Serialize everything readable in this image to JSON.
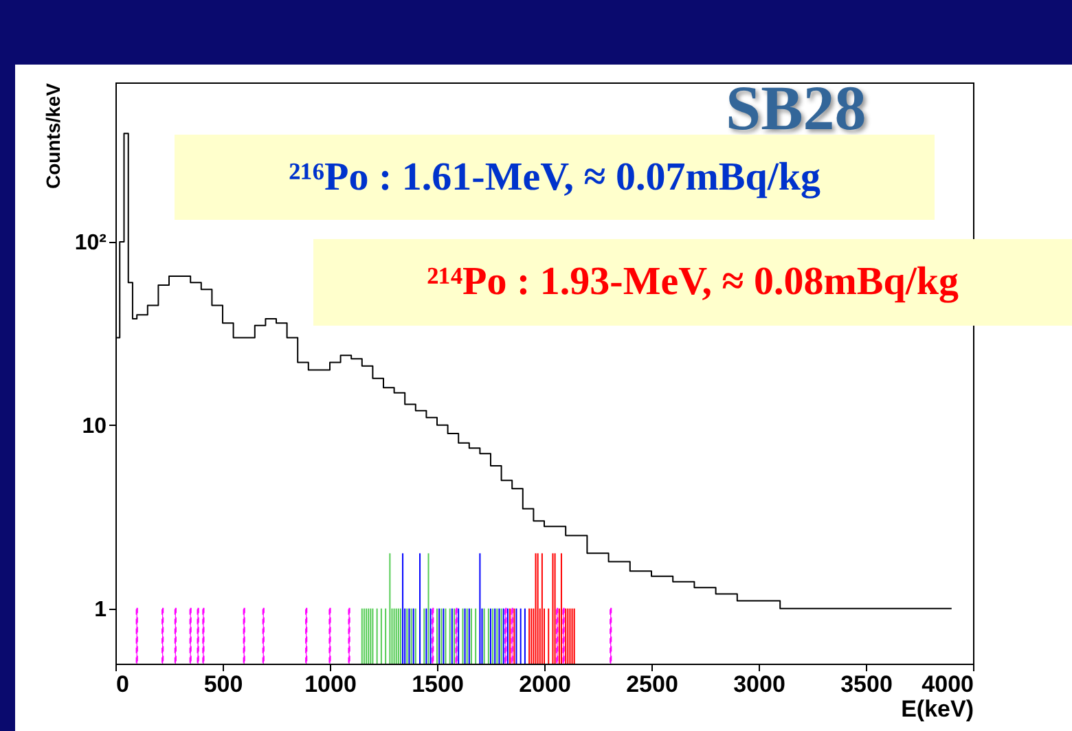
{
  "chart_data": {
    "type": "step",
    "xlabel": "E(keV)",
    "ylabel": "Counts/keV",
    "log": "y",
    "xlim": [
      0,
      4000
    ],
    "xticks": [
      0,
      500,
      1000,
      1500,
      2000,
      2500,
      3000,
      3500,
      4000
    ],
    "ylim": [
      0.5,
      740
    ],
    "yticks": [
      1,
      10,
      {
        "value": 100,
        "label": "10²"
      }
    ],
    "grid": false,
    "annotations": [
      "SB28",
      "²¹⁶Po : 1.61-MeV, ≈ 0.07mBq/kg",
      "²¹⁴Po : 1.93-MeV, ≈ 0.08mBq/kg"
    ],
    "series": [
      {
        "color": "#000000",
        "x": [
          0,
          20,
          40,
          60,
          80,
          100,
          150,
          200,
          250,
          300,
          350,
          400,
          450,
          500,
          550,
          600,
          650,
          700,
          750,
          800,
          850,
          900,
          950,
          1000,
          1050,
          1100,
          1150,
          1200,
          1250,
          1300,
          1350,
          1400,
          1450,
          1500,
          1550,
          1600,
          1650,
          1700,
          1750,
          1800,
          1850,
          1900,
          1950,
          2000,
          2100,
          2200,
          2300,
          2400,
          2500,
          2600,
          2700,
          2800,
          2900,
          3000,
          3100,
          3200,
          3300,
          3400,
          3500,
          3600,
          3700,
          3800,
          3900
        ],
        "values": [
          30,
          100,
          390,
          60,
          38,
          40,
          45,
          58,
          65,
          65,
          60,
          55,
          45,
          36,
          30,
          30,
          35,
          38,
          36,
          30,
          22,
          20,
          20,
          22,
          24,
          23,
          21,
          18,
          16,
          15,
          13,
          12,
          11,
          10,
          9,
          8,
          7.5,
          7,
          6,
          5,
          4.5,
          3.5,
          3,
          2.8,
          2.5,
          2,
          1.8,
          1.6,
          1.5,
          1.4,
          1.3,
          1.2,
          1.1,
          1.1,
          1,
          1,
          1,
          1,
          1,
          1,
          1,
          1,
          1
        ]
      },
      {
        "type": "bar",
        "color": "#55cc55",
        "x": [
          1150,
          1160,
          1170,
          1180,
          1190,
          1200,
          1220,
          1240,
          1260,
          1280,
          1290,
          1300,
          1310,
          1320,
          1330,
          1360,
          1380,
          1400,
          1440,
          1460,
          1500,
          1520,
          1540,
          1560,
          1580,
          1620,
          1640,
          1660,
          1680,
          1720,
          1740,
          1760,
          1780,
          1800
        ],
        "values": [
          1,
          1,
          1,
          1,
          1,
          1,
          1,
          1,
          1,
          2,
          1,
          1,
          1,
          1,
          1,
          1,
          1,
          1,
          1,
          2,
          1,
          1,
          1,
          1,
          1,
          1,
          1,
          1,
          1,
          1,
          1,
          1,
          1,
          1
        ]
      },
      {
        "type": "bar",
        "color": "#0000ff",
        "x": [
          1340,
          1350,
          1370,
          1390,
          1420,
          1450,
          1470,
          1510,
          1530,
          1570,
          1600,
          1630,
          1650,
          1700,
          1710,
          1750,
          1770,
          1790,
          1810,
          1830,
          1870,
          1890,
          1910
        ],
        "values": [
          2,
          1,
          1,
          1,
          2,
          1,
          1,
          1,
          1,
          1,
          1,
          1,
          1,
          2,
          1,
          1,
          1,
          1,
          1,
          1,
          1,
          1,
          1
        ]
      },
      {
        "type": "bar",
        "color": "#ff0000",
        "x": [
          1840,
          1860,
          1930,
          1940,
          1950,
          1960,
          1970,
          1980,
          1990,
          2000,
          2020,
          2040,
          2050,
          2070,
          2080,
          2100,
          2110,
          2120,
          2130,
          2140
        ],
        "values": [
          1,
          1,
          1,
          1,
          1,
          2,
          2,
          1,
          2,
          1,
          1,
          2,
          2,
          1,
          2,
          1,
          1,
          1,
          1,
          1
        ]
      },
      {
        "type": "bar",
        "color": "#ff00ff",
        "line_style": "dashed",
        "x": [
          100,
          220,
          280,
          350,
          385,
          410,
          600,
          690,
          890,
          1000,
          1090,
          1480,
          1590,
          1820,
          1850,
          2060,
          2090,
          2310
        ],
        "values": [
          1,
          1,
          1,
          1,
          1,
          1,
          1,
          1,
          1,
          1,
          1,
          1,
          1,
          1,
          1,
          1,
          1,
          1
        ]
      }
    ]
  }
}
